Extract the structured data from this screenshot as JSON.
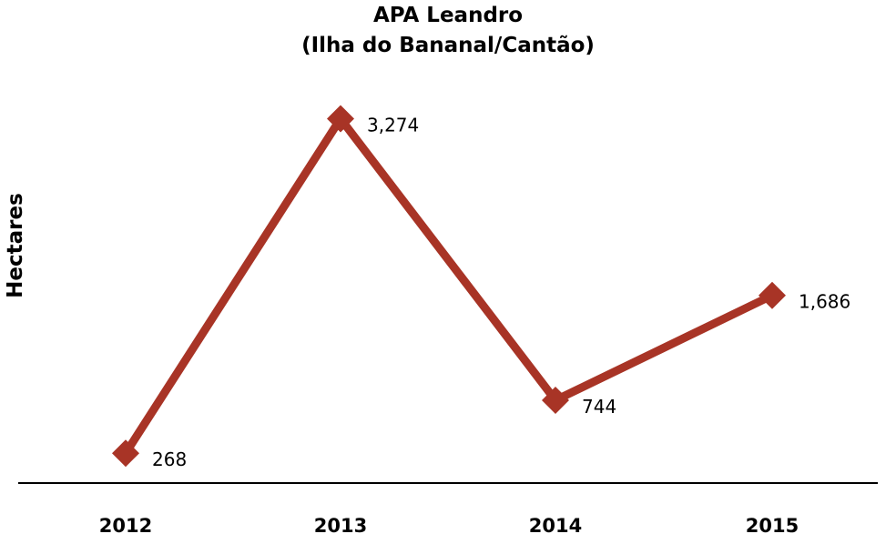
{
  "chart_data": {
    "type": "line",
    "title": "APA Leandro",
    "subtitle": "(Ilha do Bananal/Cantão)",
    "ylabel": "Hectares",
    "xlabel": "",
    "categories": [
      "2012",
      "2013",
      "2014",
      "2015"
    ],
    "series": [
      {
        "values": [
          268,
          3274,
          744,
          1686
        ],
        "labels": [
          "268",
          "3,274",
          "744",
          "1,686"
        ],
        "color": "#a83426",
        "marker": "diamond"
      }
    ],
    "ylim": [
      0,
      3600
    ],
    "grid": false,
    "legend": "none",
    "axis_line_color": "#000000"
  }
}
